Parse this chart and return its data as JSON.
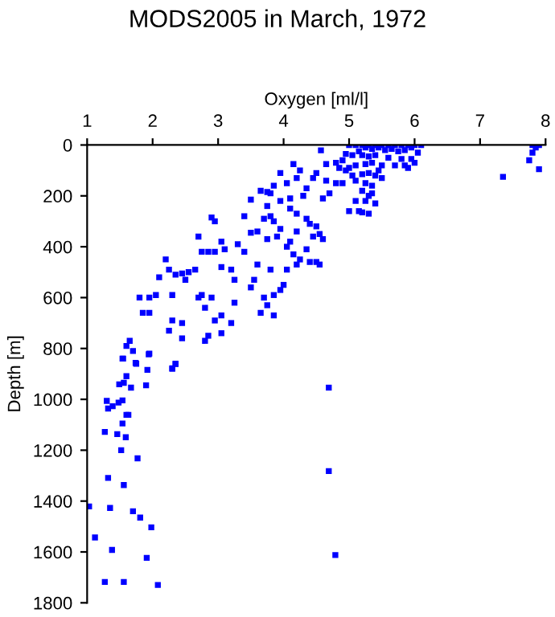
{
  "chart_data": {
    "type": "scatter",
    "title": "MODS2005 in March, 1972",
    "xlabel": "Oxygen [ml/l]",
    "ylabel": "Depth [m]",
    "xlim": [
      1,
      8
    ],
    "ylim": [
      1800,
      0
    ],
    "xticks": [
      1,
      2,
      3,
      4,
      5,
      6,
      7,
      8
    ],
    "yticks": [
      0,
      200,
      400,
      600,
      800,
      1000,
      1200,
      1400,
      1600,
      1800
    ],
    "marker": "square",
    "grid": false,
    "legend": false,
    "series": [
      {
        "color": "#0000ff",
        "x": [
          5.0,
          5.1,
          5.2,
          5.3,
          5.4,
          5.5,
          5.6,
          5.7,
          5.8,
          5.9,
          6.0,
          6.1,
          5.25,
          5.35,
          5.45,
          5.55,
          5.65,
          5.75,
          5.85,
          5.95,
          6.05,
          5.15,
          5.05,
          5.2,
          5.3,
          5.4,
          5.6,
          5.8,
          5.95,
          6.0,
          5.7,
          5.5,
          5.35,
          5.25,
          5.1,
          5.0,
          5.45,
          5.3,
          5.2,
          5.4,
          5.5,
          5.1,
          5.25,
          5.35,
          5.2,
          5.35,
          5.3,
          5.1,
          5.25,
          5.4,
          5.0,
          5.15,
          5.3,
          5.2,
          4.9,
          4.95,
          5.05,
          5.85,
          5.9,
          7.8,
          7.85,
          7.9,
          7.8,
          7.75,
          7.9,
          7.35,
          4.57,
          4.8,
          4.65,
          4.85,
          4.95,
          4.5,
          4.15,
          4.2,
          4.25,
          3.95,
          4.05,
          3.85,
          4.35,
          4.45,
          4.65,
          4.8,
          4.9,
          4.7,
          4.6,
          4.3,
          4.1,
          3.95,
          3.75,
          3.65,
          3.8,
          3.5,
          3.75,
          3.8,
          3.7,
          3.85,
          3.95,
          3.4,
          3.6,
          3.5,
          3.3,
          3.4,
          3.9,
          3.75,
          4.1,
          4.2,
          4.35,
          4.4,
          4.5,
          4.55,
          4.6,
          4.45,
          4.2,
          4.1,
          4.05,
          4.15,
          4.35,
          4.25,
          4.2,
          4.4,
          4.5,
          4.55,
          4.05,
          4.0,
          3.95,
          3.85,
          3.7,
          3.75,
          3.65,
          3.85,
          3.55,
          3.5,
          3.25,
          3.6,
          3.8,
          3.25,
          3.2,
          3.05,
          2.95,
          2.75,
          2.85,
          2.9,
          2.95,
          2.7,
          3.05,
          3.1,
          2.75,
          2.9,
          2.7,
          2.8,
          2.95,
          3.05,
          3.05,
          3.2,
          2.85,
          2.8,
          2.2,
          2.25,
          2.35,
          2.45,
          2.5,
          2.65,
          2.55,
          2.1,
          2.3,
          2.3,
          2.25,
          2.45,
          2.45,
          1.8,
          1.85,
          1.95,
          1.95,
          2.05,
          1.65,
          1.6,
          1.55,
          1.7,
          1.75,
          1.95,
          2.35,
          2.3,
          1.54,
          1.74,
          1.94,
          2.35,
          2.3,
          1.6,
          1.92,
          1.49,
          1.56,
          1.67,
          1.9,
          4.69,
          1.3,
          1.54,
          1.48,
          1.32,
          1.39,
          1.6,
          1.63,
          1.54,
          1.27,
          1.46,
          1.59,
          1.52,
          1.77,
          4.69,
          1.32,
          1.56,
          1.03,
          1.35,
          1.7,
          1.81,
          1.98,
          1.12,
          1.38,
          1.91,
          4.79,
          1.27,
          1.56,
          2.08
        ],
        "values": [
          0,
          0,
          0,
          0,
          0,
          0,
          0,
          0,
          0,
          0,
          0,
          0,
          10,
          15,
          10,
          20,
          15,
          25,
          20,
          10,
          30,
          25,
          40,
          40,
          45,
          40,
          50,
          55,
          55,
          70,
          80,
          80,
          70,
          75,
          80,
          90,
          100,
          110,
          115,
          120,
          130,
          140,
          150,
          160,
          180,
          190,
          200,
          220,
          220,
          230,
          260,
          260,
          270,
          265,
          60,
          35,
          120,
          80,
          90,
          0,
          10,
          0,
          30,
          60,
          95,
          125,
          21,
          70,
          75,
          90,
          100,
          110,
          75,
          130,
          100,
          110,
          150,
          160,
          170,
          130,
          140,
          150,
          150,
          190,
          210,
          200,
          210,
          220,
          185,
          180,
          190,
          215,
          240,
          280,
          290,
          300,
          330,
          280,
          340,
          345,
          390,
          420,
          360,
          370,
          250,
          270,
          290,
          310,
          320,
          350,
          370,
          360,
          340,
          380,
          400,
          430,
          410,
          450,
          470,
          460,
          460,
          470,
          490,
          550,
          570,
          590,
          600,
          630,
          660,
          670,
          530,
          560,
          620,
          470,
          490,
          530,
          490,
          480,
          420,
          420,
          420,
          285,
          300,
          360,
          380,
          410,
          590,
          600,
          600,
          640,
          690,
          670,
          740,
          700,
          750,
          770,
          450,
          490,
          510,
          505,
          530,
          490,
          500,
          520,
          590,
          690,
          730,
          700,
          760,
          600,
          660,
          600,
          660,
          590,
          770,
          790,
          840,
          810,
          860,
          820,
          860,
          880,
          840,
          857,
          823,
          861,
          878,
          909,
          884,
          941,
          935,
          954,
          945,
          954,
          1006,
          1004,
          1013,
          1036,
          1027,
          1061,
          1061,
          1095,
          1128,
          1137,
          1149,
          1200,
          1232,
          1282,
          1309,
          1337,
          1421,
          1427,
          1440,
          1465,
          1503,
          1543,
          1592,
          1623,
          1612,
          1718,
          1718,
          1730
        ]
      }
    ]
  }
}
